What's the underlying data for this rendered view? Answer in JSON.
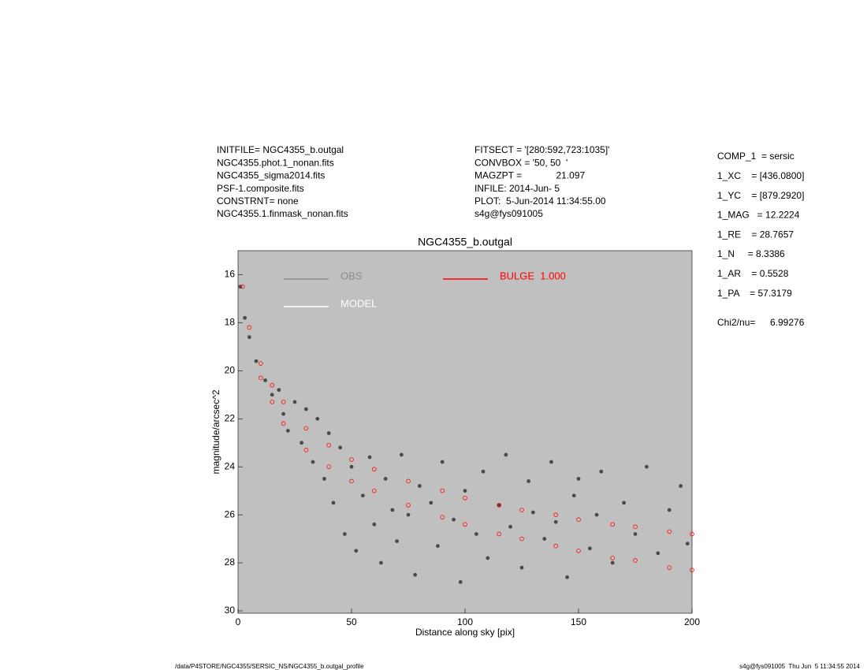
{
  "header": {
    "left": [
      "INITFILE= NGC4355_b.outgal",
      "NGC4355.phot.1_nonan.fits",
      "NGC4355_sigma2014.fits",
      "PSF-1.composite.fits",
      "CONSTRNT= none",
      "NGC4355.1.finmask_nonan.fits"
    ],
    "middle": [
      "FITSECT = '[280:592,723:1035]'",
      "CONVBOX = '50, 50  '",
      "MAGZPT =             21.097",
      "INFILE: 2014-Jun- 5",
      "PLOT:  5-Jun-2014 11:34:55.00",
      "s4g@fys091005"
    ]
  },
  "parameters": [
    "COMP_1  = sersic",
    "1_XC    = [436.0800]",
    "1_YC    = [879.2920]",
    "1_MAG   = 12.2224",
    "1_RE    = 28.7657",
    "1_N     = 8.3386",
    "1_AR    = 0.5528",
    "1_PA    = 57.3179"
  ],
  "fit": {
    "label": "Chi2/nu=",
    "value": "6.99276"
  },
  "chart_data": {
    "type": "scatter",
    "title": "NGC4355_b.outgal",
    "xlabel": "Distance along sky [pix]",
    "ylabel": "magnitude/arcsec^2",
    "xlim": [
      0,
      200
    ],
    "ylim": [
      15,
      30.1
    ],
    "y_inverted": true,
    "xticks": [
      0,
      50,
      100,
      150,
      200
    ],
    "yticks": [
      16,
      18,
      20,
      22,
      24,
      26,
      28,
      30
    ],
    "grid": false,
    "background": "#c0c0c0",
    "series": [
      {
        "name": "OBS",
        "color": "#4a4a4a",
        "legend_color": "#8a8a8a",
        "x": [
          1,
          3,
          5,
          8,
          12,
          15,
          18,
          20,
          22,
          25,
          28,
          30,
          33,
          35,
          38,
          40,
          42,
          45,
          47,
          50,
          52,
          55,
          58,
          60,
          63,
          65,
          68,
          70,
          72,
          75,
          78,
          80,
          85,
          88,
          90,
          95,
          98,
          100,
          105,
          108,
          110,
          115,
          118,
          120,
          125,
          128,
          130,
          135,
          138,
          140,
          145,
          148,
          150,
          155,
          158,
          160,
          165,
          170,
          175,
          180,
          185,
          190,
          195,
          198
        ],
        "values": [
          16.5,
          17.8,
          18.6,
          19.6,
          20.4,
          21.0,
          20.8,
          21.8,
          22.5,
          21.3,
          23.0,
          21.6,
          23.8,
          22.0,
          24.5,
          22.6,
          25.5,
          23.2,
          26.8,
          24.0,
          27.5,
          25.2,
          23.6,
          26.4,
          28.0,
          24.5,
          25.8,
          27.1,
          23.5,
          26.0,
          28.5,
          24.8,
          25.5,
          27.3,
          23.8,
          26.2,
          28.8,
          25.0,
          26.8,
          24.2,
          27.8,
          25.6,
          23.5,
          26.5,
          28.2,
          24.6,
          25.9,
          27.0,
          23.8,
          26.3,
          28.6,
          25.2,
          24.5,
          27.4,
          26.0,
          24.2,
          28.0,
          25.5,
          26.8,
          24.0,
          27.6,
          25.8,
          24.8,
          27.2
        ]
      },
      {
        "name": "MODEL",
        "color": "#ffffff",
        "x": [],
        "values": []
      },
      {
        "name": "BULGE  1.000",
        "color": "#ff0000",
        "x": [
          2,
          5,
          10,
          15,
          20,
          30,
          40,
          50,
          60,
          75,
          90,
          100,
          115,
          125,
          140,
          150,
          165,
          175,
          190,
          200,
          10,
          15,
          20,
          30,
          40,
          50,
          60,
          75,
          90,
          100,
          115,
          125,
          140,
          150,
          165,
          175,
          190,
          200
        ],
        "values": [
          16.5,
          18.2,
          19.7,
          20.6,
          21.3,
          22.4,
          23.1,
          23.7,
          24.1,
          24.6,
          25.0,
          25.3,
          25.6,
          25.8,
          26.0,
          26.2,
          26.4,
          26.5,
          26.7,
          26.8,
          20.3,
          21.3,
          22.2,
          23.3,
          24.0,
          24.6,
          25.0,
          25.6,
          26.1,
          26.4,
          26.8,
          27.0,
          27.3,
          27.5,
          27.8,
          27.9,
          28.2,
          28.3
        ]
      }
    ]
  },
  "footer": {
    "left": "/data/P4STORE/NGC4355/SERSIC_NS/NGC4355_b.outgal_profile",
    "right": "s4g@fys091005  Thu Jun  5 11:34:55 2014"
  }
}
